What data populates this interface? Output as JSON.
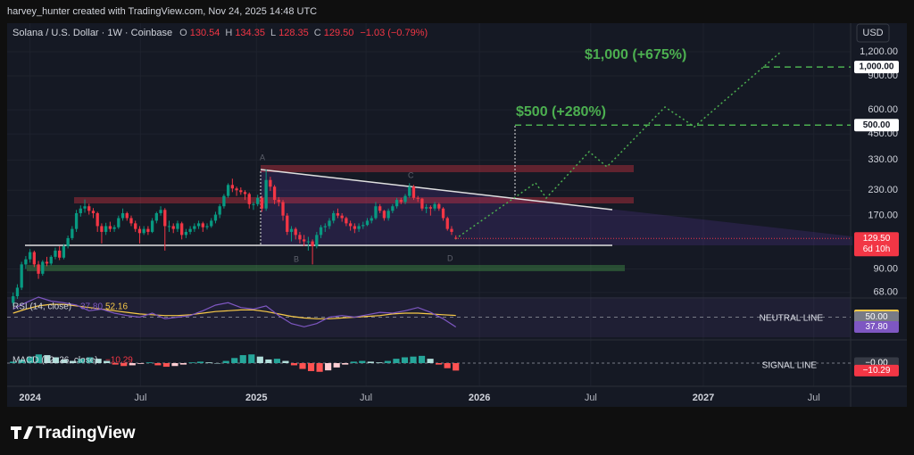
{
  "chart_data": {
    "type": "candlestick",
    "watermark": "harvey_hunter created with TradingView.com, Nov 24, 2025 14:48 UTC",
    "title": "Solana / U.S. Dollar · 1W · Coinbase",
    "ohlc_legend": [
      {
        "prefix": "O",
        "value": 130.54
      },
      {
        "prefix": "H",
        "value": 134.35
      },
      {
        "prefix": "L",
        "value": 128.35
      },
      {
        "prefix": "C",
        "value": 129.5,
        "label": "129.50"
      }
    ],
    "change": {
      "value": -1.03,
      "label": "−1.03"
    },
    "change_pct": {
      "value": -0.79,
      "label": "(−0.79%)"
    },
    "currency": "USD",
    "log_scale": true,
    "grid": true,
    "up_color": "#089981",
    "down_color": "#f23645",
    "candles": [
      [
        60,
        68,
        58,
        65
      ],
      [
        65,
        75,
        63,
        72
      ],
      [
        72,
        98,
        70,
        95
      ],
      [
        95,
        105,
        90,
        101
      ],
      [
        101,
        114,
        97,
        110
      ],
      [
        110,
        112,
        92,
        95
      ],
      [
        95,
        99,
        80,
        85
      ],
      [
        85,
        100,
        83,
        98
      ],
      [
        98,
        104,
        93,
        96
      ],
      [
        96,
        106,
        94,
        104
      ],
      [
        104,
        116,
        101,
        112
      ],
      [
        112,
        118,
        100,
        103
      ],
      [
        103,
        121,
        101,
        118
      ],
      [
        118,
        134,
        115,
        130
      ],
      [
        130,
        150,
        127,
        145
      ],
      [
        145,
        182,
        140,
        175
      ],
      [
        175,
        192,
        168,
        185
      ],
      [
        185,
        206,
        176,
        190
      ],
      [
        190,
        196,
        172,
        180
      ],
      [
        180,
        186,
        165,
        175
      ],
      [
        175,
        178,
        140,
        150
      ],
      [
        150,
        155,
        122,
        140
      ],
      [
        140,
        156,
        135,
        150
      ],
      [
        150,
        158,
        140,
        145
      ],
      [
        145,
        152,
        140,
        148
      ],
      [
        148,
        170,
        145,
        165
      ],
      [
        165,
        185,
        160,
        175
      ],
      [
        175,
        178,
        160,
        165
      ],
      [
        165,
        170,
        150,
        155
      ],
      [
        155,
        160,
        140,
        145
      ],
      [
        145,
        150,
        122,
        138
      ],
      [
        138,
        150,
        135,
        145
      ],
      [
        145,
        150,
        135,
        140
      ],
      [
        140,
        165,
        138,
        160
      ],
      [
        160,
        178,
        155,
        175
      ],
      [
        175,
        190,
        170,
        182
      ],
      [
        182,
        186,
        112,
        150
      ],
      [
        150,
        160,
        140,
        150
      ],
      [
        150,
        155,
        138,
        145
      ],
      [
        145,
        160,
        140,
        155
      ],
      [
        155,
        158,
        128,
        135
      ],
      [
        135,
        145,
        130,
        140
      ],
      [
        140,
        150,
        136,
        145
      ],
      [
        145,
        155,
        140,
        150
      ],
      [
        150,
        160,
        145,
        155
      ],
      [
        155,
        158,
        140,
        148
      ],
      [
        148,
        155,
        144,
        150
      ],
      [
        150,
        165,
        147,
        160
      ],
      [
        160,
        178,
        155,
        172
      ],
      [
        172,
        195,
        165,
        190
      ],
      [
        190,
        220,
        185,
        215
      ],
      [
        215,
        250,
        210,
        245
      ],
      [
        245,
        264,
        225,
        235
      ],
      [
        235,
        240,
        215,
        230
      ],
      [
        230,
        238,
        218,
        225
      ],
      [
        225,
        230,
        205,
        220
      ],
      [
        220,
        224,
        185,
        195
      ],
      [
        195,
        200,
        182,
        195
      ],
      [
        195,
        218,
        190,
        210
      ],
      [
        210,
        215,
        178,
        185
      ],
      [
        185,
        295,
        180,
        260
      ],
      [
        260,
        270,
        228,
        240
      ],
      [
        240,
        245,
        195,
        205
      ],
      [
        205,
        212,
        190,
        200
      ],
      [
        200,
        205,
        160,
        170
      ],
      [
        170,
        175,
        135,
        140
      ],
      [
        140,
        150,
        125,
        145
      ],
      [
        145,
        148,
        128,
        135
      ],
      [
        135,
        140,
        122,
        128
      ],
      [
        128,
        135,
        118,
        125
      ],
      [
        125,
        132,
        112,
        125
      ],
      [
        125,
        128,
        95,
        118
      ],
      [
        118,
        140,
        115,
        135
      ],
      [
        135,
        152,
        130,
        148
      ],
      [
        148,
        155,
        140,
        150
      ],
      [
        150,
        165,
        145,
        160
      ],
      [
        160,
        180,
        155,
        175
      ],
      [
        175,
        185,
        165,
        170
      ],
      [
        170,
        175,
        158,
        165
      ],
      [
        165,
        168,
        150,
        155
      ],
      [
        155,
        160,
        142,
        150
      ],
      [
        150,
        155,
        138,
        145
      ],
      [
        145,
        155,
        140,
        150
      ],
      [
        150,
        158,
        145,
        152
      ],
      [
        152,
        165,
        150,
        160
      ],
      [
        160,
        170,
        155,
        165
      ],
      [
        165,
        200,
        162,
        190
      ],
      [
        190,
        195,
        175,
        180
      ],
      [
        180,
        182,
        160,
        165
      ],
      [
        165,
        185,
        160,
        180
      ],
      [
        180,
        195,
        175,
        190
      ],
      [
        190,
        210,
        185,
        205
      ],
      [
        205,
        210,
        195,
        200
      ],
      [
        200,
        220,
        195,
        215
      ],
      [
        215,
        250,
        210,
        240
      ],
      [
        240,
        245,
        205,
        210
      ],
      [
        210,
        215,
        200,
        208
      ],
      [
        208,
        210,
        180,
        185
      ],
      [
        185,
        195,
        175,
        188
      ],
      [
        188,
        192,
        170,
        185
      ],
      [
        185,
        200,
        180,
        195
      ],
      [
        195,
        198,
        180,
        185
      ],
      [
        185,
        188,
        160,
        165
      ],
      [
        165,
        168,
        142,
        145
      ],
      [
        145,
        150,
        135,
        140
      ],
      [
        130.54,
        134.35,
        128.35,
        129.5
      ]
    ],
    "xlim": [
      -1,
      198
    ],
    "xticks": [
      {
        "value": 4,
        "label": "2024"
      },
      {
        "value": 30.2,
        "label": "Jul"
      },
      {
        "value": 57.7,
        "label": "2025"
      },
      {
        "value": 83.7,
        "label": "Jul"
      },
      {
        "value": 110.6,
        "label": "2026"
      },
      {
        "value": 137,
        "label": "Jul"
      },
      {
        "value": 163.7,
        "label": "2027"
      },
      {
        "value": 189.9,
        "label": "Jul"
      }
    ],
    "ylim": [
      63,
      1650
    ],
    "yticks": [
      {
        "value": 1200,
        "label": "1,200.00"
      },
      {
        "value": 900,
        "label": "900.00"
      },
      {
        "value": 600,
        "label": "600.00"
      },
      {
        "value": 450,
        "label": "450.00"
      },
      {
        "value": 330,
        "label": "330.00"
      },
      {
        "value": 230,
        "label": "230.00"
      },
      {
        "value": 170,
        "label": "170.00"
      },
      {
        "value": 90,
        "label": "90.00"
      },
      {
        "value": 68,
        "label": "68.00"
      }
    ],
    "last_price": {
      "value": 129.5,
      "label": "129.50"
    },
    "countdown": "6d 10h",
    "targets": [
      {
        "value": 1000,
        "label": "1,000.00",
        "text": "$1,000 (+675%)"
      },
      {
        "value": 500,
        "label": "500.00",
        "text": "$500 (+280%)"
      }
    ],
    "pattern_labels": [
      "A",
      "B",
      "C",
      "D"
    ],
    "rsi": {
      "label": "RSI (14, close)",
      "current": {
        "value": 37.8,
        "label": "37.80"
      },
      "ma_current": {
        "value": 52.16,
        "label": "52.16"
      },
      "values": [
        60,
        68,
        75,
        70,
        68,
        65,
        58,
        60,
        55,
        52,
        50,
        55,
        48,
        50,
        52,
        58,
        65,
        68,
        62,
        60,
        64,
        52,
        42,
        38,
        42,
        50,
        52,
        50,
        53,
        56,
        55,
        58,
        62,
        56,
        48,
        37.8
      ],
      "ma_values": [
        55,
        60,
        64,
        66,
        66,
        64,
        62,
        60,
        58,
        56,
        54,
        53,
        52,
        52,
        53,
        55,
        57,
        58,
        59,
        59,
        57,
        54,
        51,
        49,
        48,
        48,
        49,
        50,
        51,
        52,
        54,
        55,
        55,
        54,
        53,
        52.16
      ],
      "color": "#7e57c2",
      "ma_color": "#f7c948",
      "ylim": [
        25,
        75
      ],
      "level": {
        "value": 50,
        "label": "50.00"
      },
      "level_name": "NEUTRAL LINE"
    },
    "macd": {
      "label": "MACD (12, 26, close)",
      "current": {
        "value": -10.29,
        "label": "−10.29"
      },
      "zero": {
        "value": 0,
        "label": "−0.00"
      },
      "signal_name": "SIGNAL LINE",
      "histogram": [
        2,
        5,
        9,
        12,
        11,
        8,
        5,
        3,
        6,
        8,
        6,
        3,
        -2,
        -4,
        -3,
        -1,
        1,
        -3,
        -5,
        -4,
        -2,
        1,
        2,
        1,
        0,
        3,
        7,
        11,
        12,
        9,
        5,
        6,
        3,
        -3,
        -8,
        -11,
        -12,
        -10,
        -6,
        -2,
        2,
        3,
        2,
        1,
        3,
        6,
        8,
        9,
        10,
        6,
        -2,
        -7,
        -10.29
      ],
      "ylim": [
        -32,
        32
      ]
    },
    "brand": "TradingView"
  }
}
